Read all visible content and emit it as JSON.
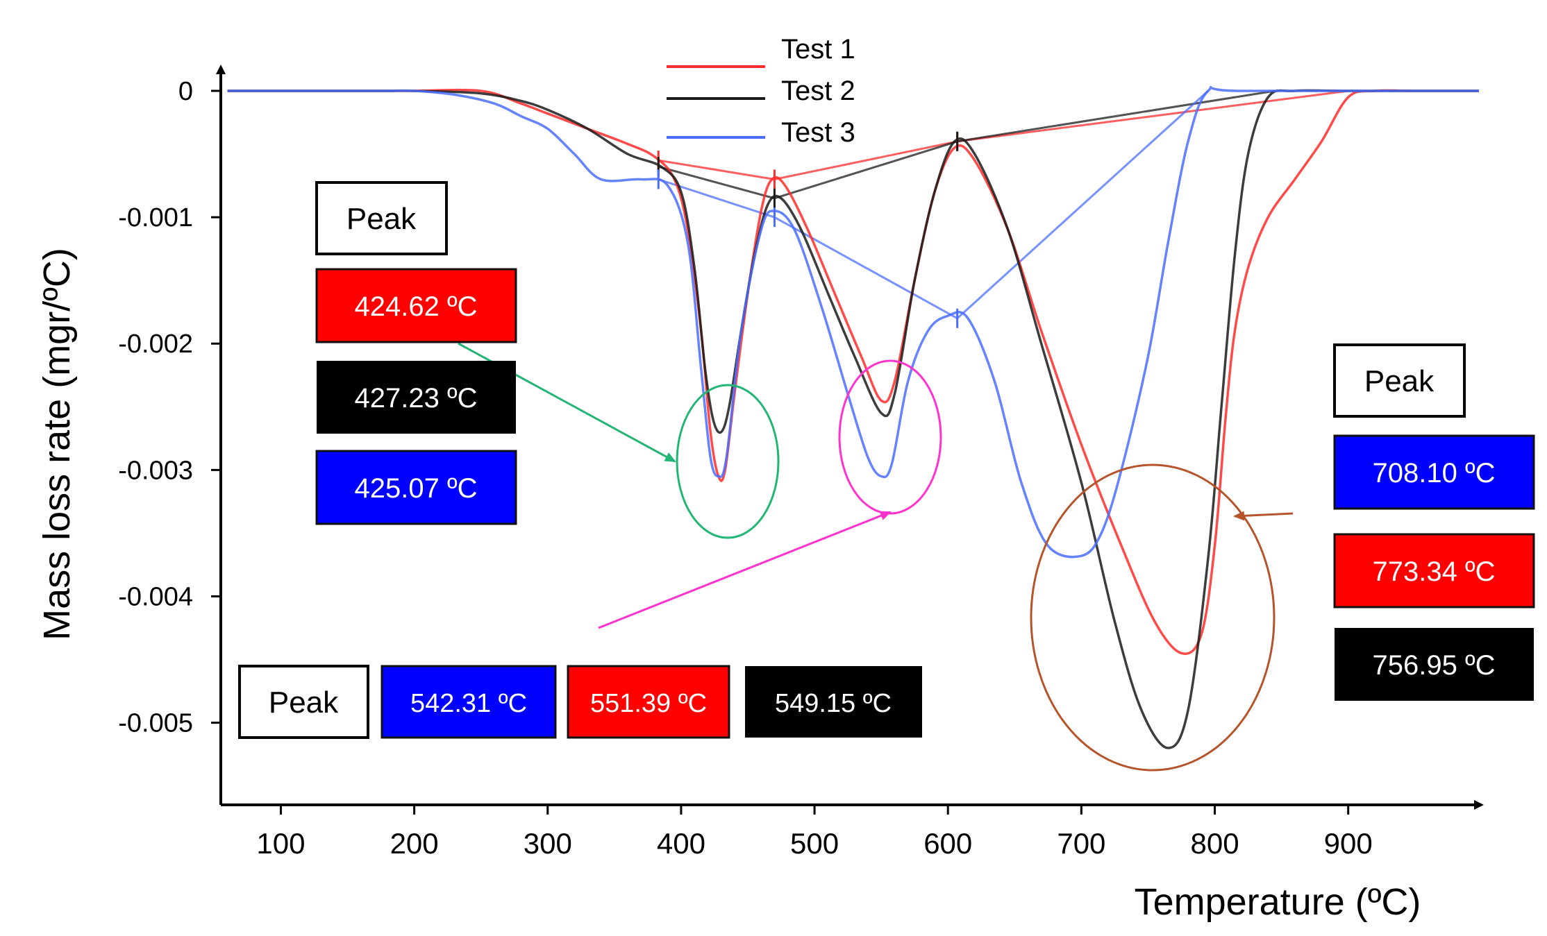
{
  "chart_data": {
    "type": "line",
    "title": "",
    "xlabel": "Temperature (ºC)",
    "ylabel": "Mass loss rate (mgr/ºC)",
    "xlim": [
      55,
      998
    ],
    "ylim": [
      -0.00565,
      0.00017
    ],
    "x_ticks": [
      100,
      200,
      300,
      400,
      500,
      600,
      700,
      800,
      900
    ],
    "x_tick_labels": [
      "100",
      "200",
      "300",
      "400",
      "500",
      "600",
      "700",
      "800",
      "900"
    ],
    "y_ticks": [
      0,
      -0.001,
      -0.002,
      -0.003,
      -0.004,
      -0.005
    ],
    "y_tick_labels": [
      "0",
      "-0.001",
      "-0.002",
      "-0.003",
      "-0.004",
      "-0.005"
    ],
    "grid": false,
    "legend_position": "top-center",
    "series": [
      {
        "name": "Test 1",
        "color": "#ff2a2a",
        "points": [
          [
            60,
            0.0
          ],
          [
            100,
            0.0
          ],
          [
            150,
            0.0
          ],
          [
            180,
            0.0
          ],
          [
            200,
            0.0
          ],
          [
            250,
            0.0
          ],
          [
            280,
            -0.0001
          ],
          [
            300,
            -0.00018
          ],
          [
            330,
            -0.0003
          ],
          [
            360,
            -0.00042
          ],
          [
            380,
            -0.00052
          ],
          [
            395,
            -0.0007
          ],
          [
            405,
            -0.0011
          ],
          [
            415,
            -0.0019
          ],
          [
            422,
            -0.0027
          ],
          [
            428,
            -0.00305
          ],
          [
            433,
            -0.003
          ],
          [
            440,
            -0.0024
          ],
          [
            450,
            -0.0016
          ],
          [
            460,
            -0.00095
          ],
          [
            468,
            -0.0007
          ],
          [
            478,
            -0.00075
          ],
          [
            495,
            -0.0011
          ],
          [
            515,
            -0.0016
          ],
          [
            535,
            -0.0021
          ],
          [
            550,
            -0.00245
          ],
          [
            560,
            -0.0023
          ],
          [
            575,
            -0.0015
          ],
          [
            590,
            -0.0008
          ],
          [
            605,
            -0.00045
          ],
          [
            620,
            -0.00055
          ],
          [
            645,
            -0.0011
          ],
          [
            670,
            -0.0019
          ],
          [
            700,
            -0.0028
          ],
          [
            730,
            -0.0036
          ],
          [
            755,
            -0.0042
          ],
          [
            775,
            -0.00445
          ],
          [
            790,
            -0.0043
          ],
          [
            800,
            -0.0036
          ],
          [
            808,
            -0.0026
          ],
          [
            815,
            -0.0019
          ],
          [
            825,
            -0.0014
          ],
          [
            840,
            -0.001
          ],
          [
            860,
            -0.0007
          ],
          [
            880,
            -0.0004
          ],
          [
            900,
            -5e-05
          ],
          [
            920,
            0.0
          ],
          [
            950,
            0.0
          ],
          [
            998,
            0.0
          ]
        ]
      },
      {
        "name": "Test 2",
        "color": "#1a1a1a",
        "points": [
          [
            60,
            0.0
          ],
          [
            100,
            0.0
          ],
          [
            150,
            0.0
          ],
          [
            180,
            0.0
          ],
          [
            200,
            0.0
          ],
          [
            250,
            -2e-05
          ],
          [
            280,
            -8e-05
          ],
          [
            300,
            -0.00015
          ],
          [
            330,
            -0.0003
          ],
          [
            360,
            -0.0005
          ],
          [
            385,
            -0.0006
          ],
          [
            400,
            -0.0008
          ],
          [
            410,
            -0.0014
          ],
          [
            418,
            -0.0022
          ],
          [
            424,
            -0.0026
          ],
          [
            430,
            -0.0027
          ],
          [
            436,
            -0.0025
          ],
          [
            445,
            -0.0019
          ],
          [
            455,
            -0.0013
          ],
          [
            465,
            -0.0009
          ],
          [
            475,
            -0.00085
          ],
          [
            490,
            -0.0011
          ],
          [
            510,
            -0.0016
          ],
          [
            530,
            -0.0021
          ],
          [
            550,
            -0.00255
          ],
          [
            560,
            -0.0024
          ],
          [
            575,
            -0.0015
          ],
          [
            590,
            -0.0008
          ],
          [
            605,
            -0.0004
          ],
          [
            620,
            -0.0005
          ],
          [
            645,
            -0.0011
          ],
          [
            670,
            -0.002
          ],
          [
            700,
            -0.0031
          ],
          [
            725,
            -0.0042
          ],
          [
            745,
            -0.0049
          ],
          [
            765,
            -0.0052
          ],
          [
            780,
            -0.0049
          ],
          [
            795,
            -0.0037
          ],
          [
            805,
            -0.0025
          ],
          [
            815,
            -0.0013
          ],
          [
            825,
            -0.0005
          ],
          [
            840,
            -5e-05
          ],
          [
            860,
            0.0
          ],
          [
            900,
            0.0
          ],
          [
            998,
            0.0
          ]
        ]
      },
      {
        "name": "Test 3",
        "color": "#4a6cff",
        "points": [
          [
            60,
            0.0
          ],
          [
            100,
            0.0
          ],
          [
            150,
            0.0
          ],
          [
            180,
            0.0
          ],
          [
            200,
            0.0
          ],
          [
            230,
            -3e-05
          ],
          [
            260,
            -0.0001
          ],
          [
            280,
            -0.0002
          ],
          [
            300,
            -0.0003
          ],
          [
            320,
            -0.0005
          ],
          [
            340,
            -0.0007
          ],
          [
            370,
            -0.0007
          ],
          [
            390,
            -0.00075
          ],
          [
            405,
            -0.0012
          ],
          [
            415,
            -0.0022
          ],
          [
            422,
            -0.0029
          ],
          [
            428,
            -0.00305
          ],
          [
            434,
            -0.0029
          ],
          [
            445,
            -0.0019
          ],
          [
            460,
            -0.0011
          ],
          [
            470,
            -0.00095
          ],
          [
            485,
            -0.0011
          ],
          [
            505,
            -0.0017
          ],
          [
            525,
            -0.0024
          ],
          [
            540,
            -0.0029
          ],
          [
            550,
            -0.00305
          ],
          [
            558,
            -0.00295
          ],
          [
            570,
            -0.0023
          ],
          [
            585,
            -0.0019
          ],
          [
            600,
            -0.00178
          ],
          [
            615,
            -0.0018
          ],
          [
            635,
            -0.0023
          ],
          [
            655,
            -0.0031
          ],
          [
            675,
            -0.0036
          ],
          [
            700,
            -0.00368
          ],
          [
            715,
            -0.0035
          ],
          [
            730,
            -0.003
          ],
          [
            750,
            -0.0021
          ],
          [
            765,
            -0.0012
          ],
          [
            780,
            -0.0004
          ],
          [
            795,
            0.0
          ],
          [
            820,
            0.0
          ],
          [
            998,
            0.0
          ]
        ]
      }
    ],
    "baselines": [
      {
        "series": "Test 1",
        "color": "#ff2a2a",
        "points": [
          [
            383,
            -0.00055
          ],
          [
            470,
            -0.0007
          ],
          [
            607,
            -0.0004
          ],
          [
            900,
            0.0
          ]
        ]
      },
      {
        "series": "Test 2",
        "color": "#1a1a1a",
        "points": [
          [
            383,
            -0.0006
          ],
          [
            470,
            -0.00085
          ],
          [
            607,
            -0.0004
          ],
          [
            845,
            0.0
          ]
        ]
      },
      {
        "series": "Test 3",
        "color": "#4a6cff",
        "points": [
          [
            383,
            -0.0007
          ],
          [
            470,
            -0.001
          ],
          [
            607,
            -0.0018
          ],
          [
            795,
            0.0
          ]
        ]
      }
    ],
    "peak_labels": {
      "group1": {
        "header": "Peak",
        "test1": "424.62 ºC",
        "test2": "427.23 ºC",
        "test3": "425.07 ºC"
      },
      "group2": {
        "header": "Peak",
        "test3": "542.31 ºC",
        "test1": "551.39 ºC",
        "test2": "549.15 ºC"
      },
      "group3": {
        "header": "Peak",
        "test3": "708.10 ºC",
        "test1": "773.34 ºC",
        "test2": "756.95 ºC"
      }
    },
    "annotations": [
      {
        "type": "circle",
        "color": "#22b573",
        "center": [
          430,
          -0.0029
        ],
        "note": "peak 1 region"
      },
      {
        "type": "circle",
        "color": "#ff33cc",
        "center": [
          553,
          -0.0027
        ],
        "note": "peak 2 region"
      },
      {
        "type": "circle",
        "color": "#b5542a",
        "center": [
          752,
          -0.0042
        ],
        "note": "peak 3 region"
      }
    ]
  },
  "colors": {
    "red_box": "#ff0000",
    "black_box": "#000000",
    "blue_box": "#0000ff",
    "axis": "#000000"
  }
}
